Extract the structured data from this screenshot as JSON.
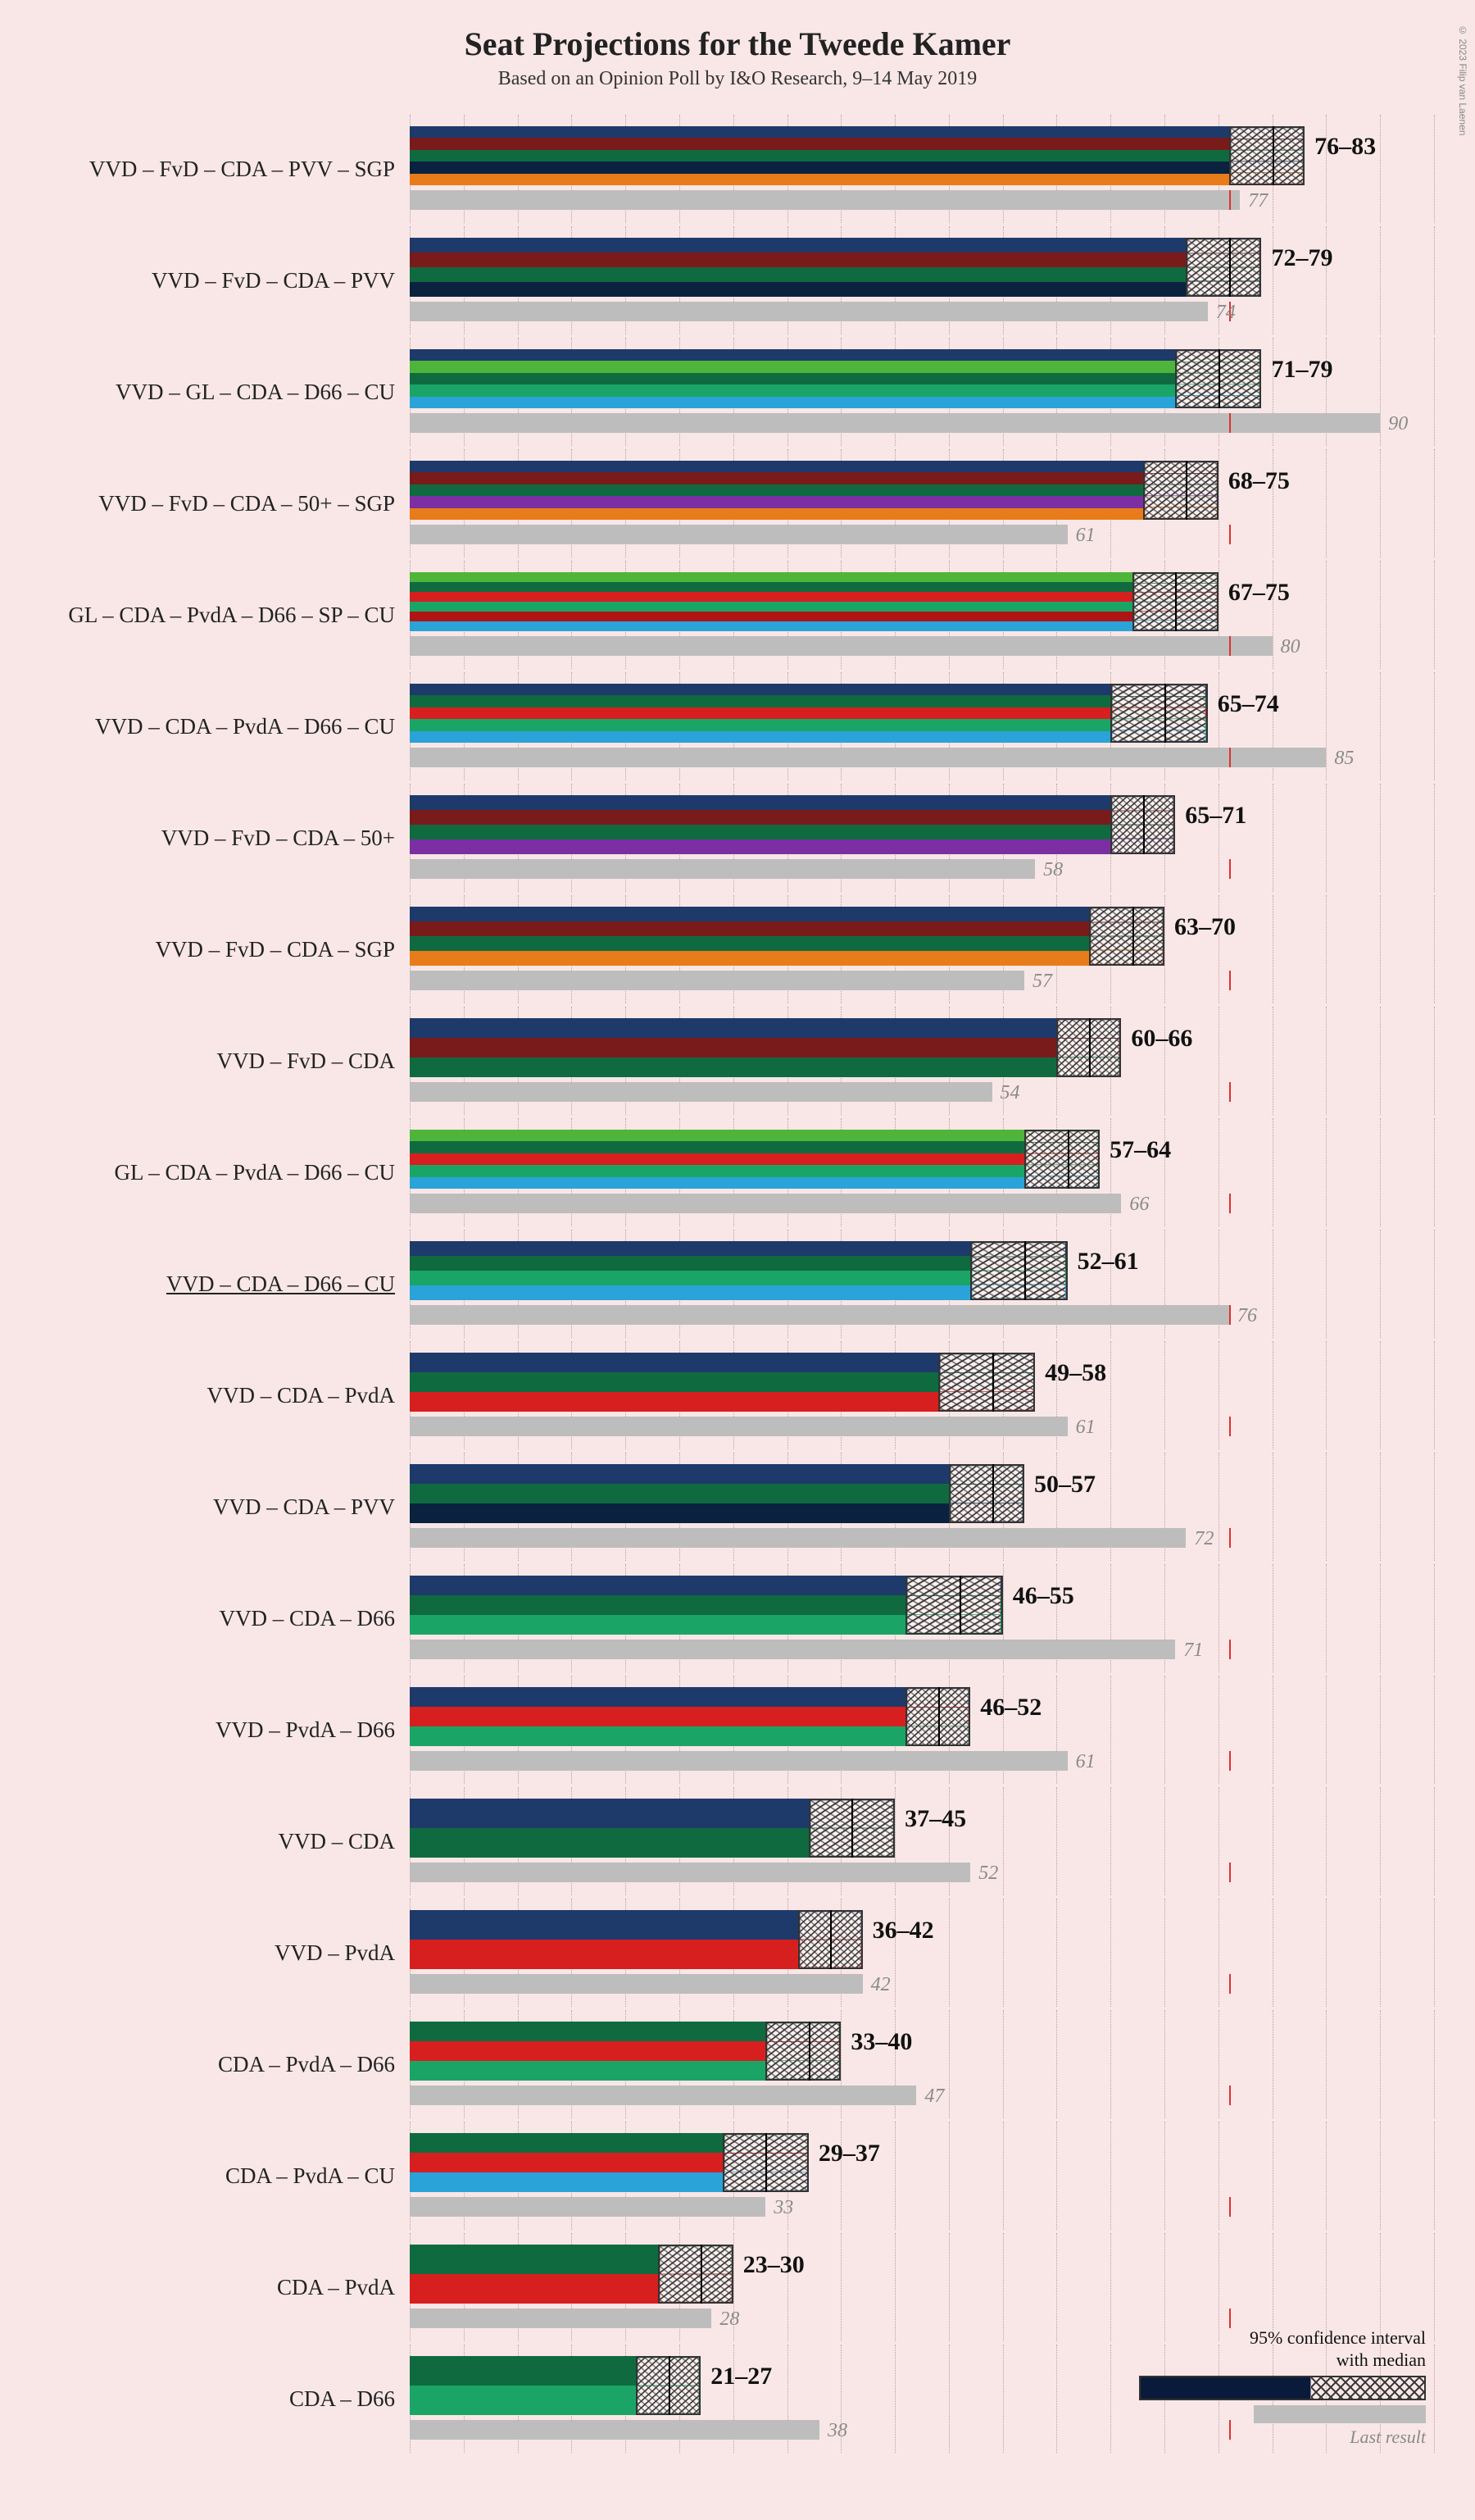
{
  "title": "Seat Projections for the Tweede Kamer",
  "subtitle": "Based on an Opinion Poll by I&O Research, 9–14 May 2019",
  "copyright": "© 2023 Filip van Laenen",
  "axis": {
    "max": 95,
    "tick_step": 5,
    "majority": 76
  },
  "legend": {
    "ci_label": "95% confidence interval\nwith median",
    "last_label": "Last result"
  },
  "party_colors": {
    "VVD": "#1e3a6b",
    "FvD": "#7a1b1b",
    "CDA": "#0f6b3f",
    "PVV": "#0a2240",
    "SGP": "#e87c1a",
    "GL": "#4fb53a",
    "D66": "#1aa566",
    "CU": "#2aa3d8",
    "50+": "#7b2fa3",
    "PvdA": "#d81f1f",
    "SP": "#b01515"
  },
  "coalitions": [
    {
      "label": "VVD – FvD – CDA – PVV – SGP",
      "parties": [
        "VVD",
        "FvD",
        "CDA",
        "PVV",
        "SGP"
      ],
      "lo": 76,
      "hi": 83,
      "median": 80,
      "last": 77
    },
    {
      "label": "VVD – FvD – CDA – PVV",
      "parties": [
        "VVD",
        "FvD",
        "CDA",
        "PVV"
      ],
      "lo": 72,
      "hi": 79,
      "median": 76,
      "last": 74
    },
    {
      "label": "VVD – GL – CDA – D66 – CU",
      "parties": [
        "VVD",
        "GL",
        "CDA",
        "D66",
        "CU"
      ],
      "lo": 71,
      "hi": 79,
      "median": 75,
      "last": 90
    },
    {
      "label": "VVD – FvD – CDA – 50+ – SGP",
      "parties": [
        "VVD",
        "FvD",
        "CDA",
        "50+",
        "SGP"
      ],
      "lo": 68,
      "hi": 75,
      "median": 72,
      "last": 61
    },
    {
      "label": "GL – CDA – PvdA – D66 – SP – CU",
      "parties": [
        "GL",
        "CDA",
        "PvdA",
        "D66",
        "SP",
        "CU"
      ],
      "lo": 67,
      "hi": 75,
      "median": 71,
      "last": 80
    },
    {
      "label": "VVD – CDA – PvdA – D66 – CU",
      "parties": [
        "VVD",
        "CDA",
        "PvdA",
        "D66",
        "CU"
      ],
      "lo": 65,
      "hi": 74,
      "median": 70,
      "last": 85
    },
    {
      "label": "VVD – FvD – CDA – 50+",
      "parties": [
        "VVD",
        "FvD",
        "CDA",
        "50+"
      ],
      "lo": 65,
      "hi": 71,
      "median": 68,
      "last": 58
    },
    {
      "label": "VVD – FvD – CDA – SGP",
      "parties": [
        "VVD",
        "FvD",
        "CDA",
        "SGP"
      ],
      "lo": 63,
      "hi": 70,
      "median": 67,
      "last": 57
    },
    {
      "label": "VVD – FvD – CDA",
      "parties": [
        "VVD",
        "FvD",
        "CDA"
      ],
      "lo": 60,
      "hi": 66,
      "median": 63,
      "last": 54
    },
    {
      "label": "GL – CDA – PvdA – D66 – CU",
      "parties": [
        "GL",
        "CDA",
        "PvdA",
        "D66",
        "CU"
      ],
      "lo": 57,
      "hi": 64,
      "median": 61,
      "last": 66
    },
    {
      "label": "VVD – CDA – D66 – CU",
      "parties": [
        "VVD",
        "CDA",
        "D66",
        "CU"
      ],
      "lo": 52,
      "hi": 61,
      "median": 57,
      "last": 76,
      "underline": true
    },
    {
      "label": "VVD – CDA – PvdA",
      "parties": [
        "VVD",
        "CDA",
        "PvdA"
      ],
      "lo": 49,
      "hi": 58,
      "median": 54,
      "last": 61
    },
    {
      "label": "VVD – CDA – PVV",
      "parties": [
        "VVD",
        "CDA",
        "PVV"
      ],
      "lo": 50,
      "hi": 57,
      "median": 54,
      "last": 72
    },
    {
      "label": "VVD – CDA – D66",
      "parties": [
        "VVD",
        "CDA",
        "D66"
      ],
      "lo": 46,
      "hi": 55,
      "median": 51,
      "last": 71
    },
    {
      "label": "VVD – PvdA – D66",
      "parties": [
        "VVD",
        "PvdA",
        "D66"
      ],
      "lo": 46,
      "hi": 52,
      "median": 49,
      "last": 61
    },
    {
      "label": "VVD – CDA",
      "parties": [
        "VVD",
        "CDA"
      ],
      "lo": 37,
      "hi": 45,
      "median": 41,
      "last": 52
    },
    {
      "label": "VVD – PvdA",
      "parties": [
        "VVD",
        "PvdA"
      ],
      "lo": 36,
      "hi": 42,
      "median": 39,
      "last": 42
    },
    {
      "label": "CDA – PvdA – D66",
      "parties": [
        "CDA",
        "PvdA",
        "D66"
      ],
      "lo": 33,
      "hi": 40,
      "median": 37,
      "last": 47
    },
    {
      "label": "CDA – PvdA – CU",
      "parties": [
        "CDA",
        "PvdA",
        "CU"
      ],
      "lo": 29,
      "hi": 37,
      "median": 33,
      "last": 33
    },
    {
      "label": "CDA – PvdA",
      "parties": [
        "CDA",
        "PvdA"
      ],
      "lo": 23,
      "hi": 30,
      "median": 27,
      "last": 28
    },
    {
      "label": "CDA – D66",
      "parties": [
        "CDA",
        "D66"
      ],
      "lo": 21,
      "hi": 27,
      "median": 24,
      "last": 38
    }
  ]
}
